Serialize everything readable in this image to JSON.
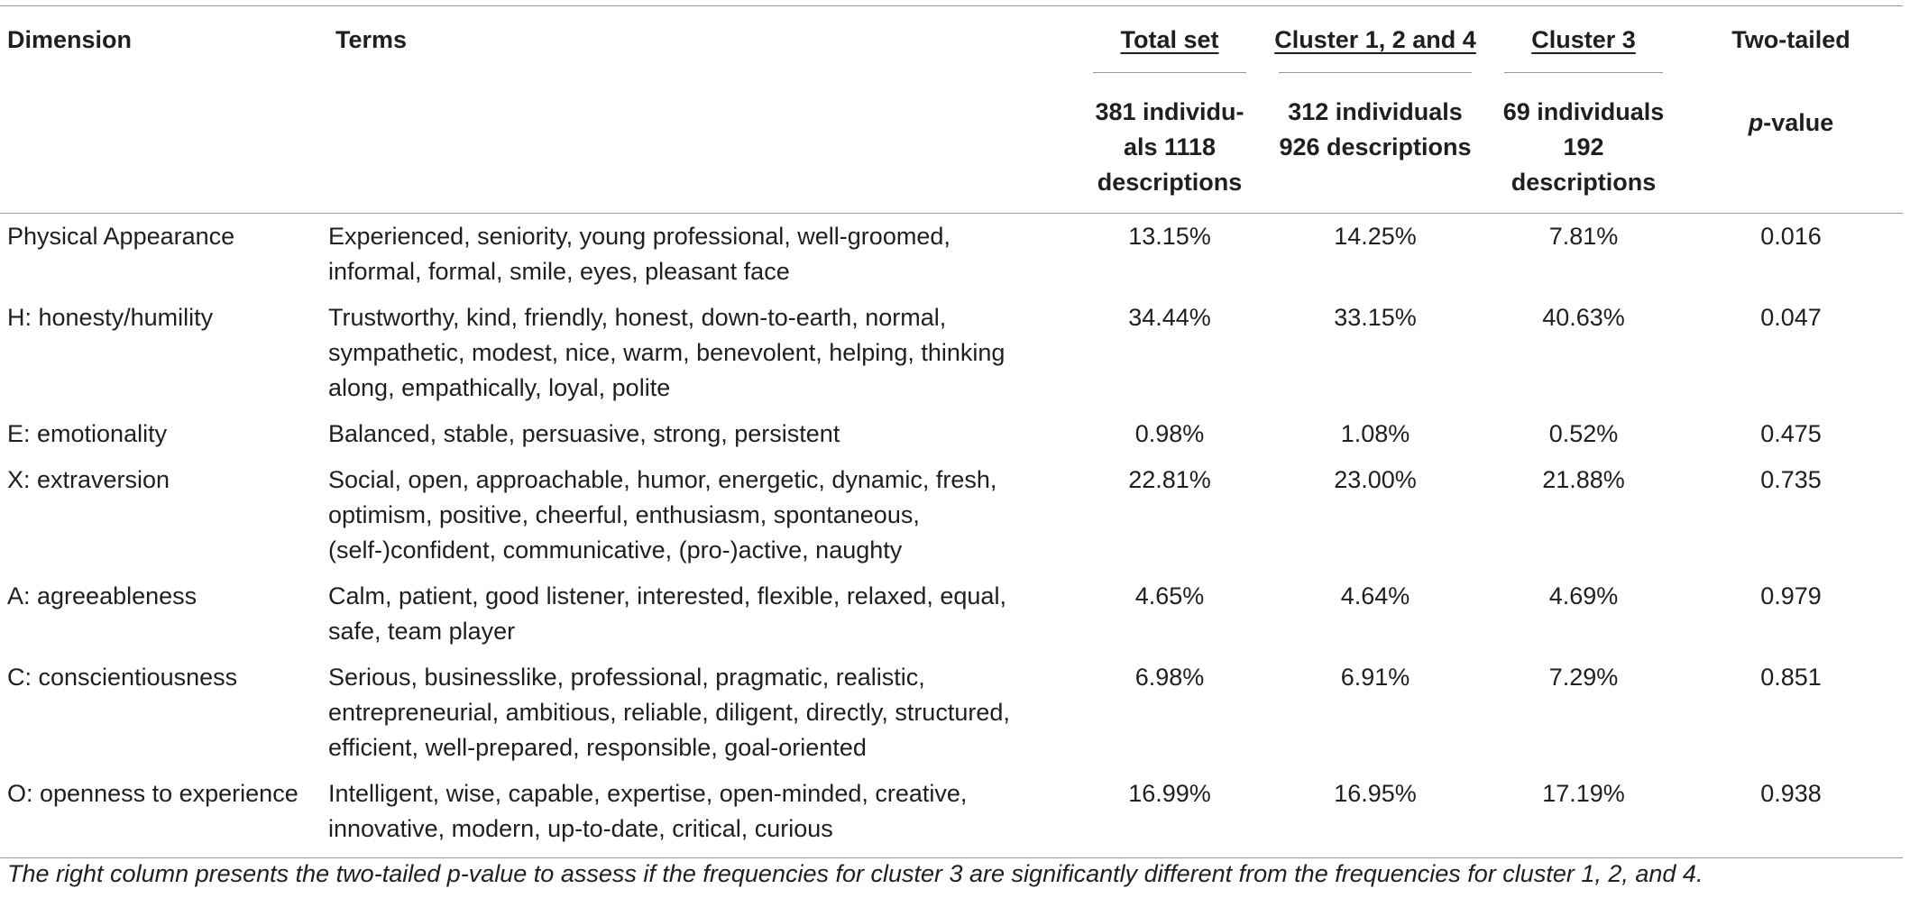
{
  "table": {
    "headers": {
      "dimension": "Dimension",
      "terms": "Terms",
      "total_set": "Total set",
      "total_set_sub_line1": "381 individu-",
      "total_set_sub_line2": "als 1118",
      "total_set_sub_line3": "descriptions",
      "cluster124": "Cluster 1, 2 and 4",
      "cluster124_sub_line1": "312 individuals",
      "cluster124_sub_line2": "926 descriptions",
      "cluster3": "Cluster 3",
      "cluster3_sub_line1": "69 individuals",
      "cluster3_sub_line2": "192",
      "cluster3_sub_line3": "descriptions",
      "two_tailed": "Two-tailed",
      "p_italic": "p",
      "p_rest": "-value"
    },
    "rows": [
      {
        "dimension": "Physical Appearance",
        "terms": "Experienced, seniority, young professional, well-groomed, informal, formal, smile, eyes, pleasant face",
        "total": "13.15%",
        "c124": "14.25%",
        "c3": "7.81%",
        "p": "0.016"
      },
      {
        "dimension": "H: honesty/humility",
        "terms": "Trustworthy, kind, friendly, honest, down-to-earth, normal, sympathetic, modest, nice, warm, benevolent, helping, thinking along, empathically, loyal, polite",
        "total": "34.44%",
        "c124": "33.15%",
        "c3": "40.63%",
        "p": "0.047"
      },
      {
        "dimension": "E: emotionality",
        "terms": "Balanced, stable, persuasive, strong, persistent",
        "total": "0.98%",
        "c124": "1.08%",
        "c3": "0.52%",
        "p": "0.475"
      },
      {
        "dimension": "X: extraversion",
        "terms": "Social, open, approachable, humor, energetic, dynamic, fresh, optimism, positive, cheerful, enthusiasm, spontaneous, (self-)confident, communicative, (pro-)active, naughty",
        "total": "22.81%",
        "c124": "23.00%",
        "c3": "21.88%",
        "p": "0.735"
      },
      {
        "dimension": "A: agreeableness",
        "terms": "Calm, patient, good listener, interested, flexible, relaxed, equal, safe, team player",
        "total": "4.65%",
        "c124": "4.64%",
        "c3": "4.69%",
        "p": "0.979"
      },
      {
        "dimension": "C: conscientiousness",
        "terms": "Serious, businesslike, professional, pragmatic, realistic, entrepreneurial, ambitious, reliable, diligent, directly, structured, efficient, well-prepared, responsible, goal-oriented",
        "total": "6.98%",
        "c124": "6.91%",
        "c3": "7.29%",
        "p": "0.851"
      },
      {
        "dimension": "O: openness to experience",
        "terms": "Intelligent, wise, capable, expertise, open-minded, creative, innovative, modern, up-to-date, critical, curious",
        "total": "16.99%",
        "c124": "16.95%",
        "c3": "17.19%",
        "p": "0.938"
      }
    ]
  },
  "footnote": "The right column presents the two-tailed p-value to assess if the frequencies for cluster 3 are significantly different from the frequencies for cluster 1, 2, and 4."
}
